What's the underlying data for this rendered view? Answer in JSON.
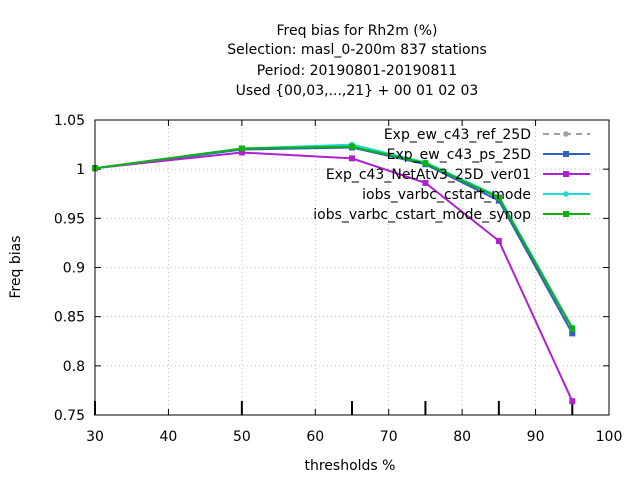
{
  "chart_data": {
    "type": "line",
    "title_lines": [
      "Freq bias  for Rh2m (%)",
      "Selection: masl_0-200m    837 stations",
      "Period: 20190801-20190811",
      "Used {00,03,...,21} + 00 01 02 03"
    ],
    "xlabel": "thresholds %",
    "ylabel": "Freq bias",
    "xlim": [
      30,
      100
    ],
    "ylim": [
      0.75,
      1.05
    ],
    "x_ticks": [
      30,
      40,
      50,
      60,
      70,
      80,
      90,
      100
    ],
    "y_ticks": [
      0.75,
      0.8,
      0.85,
      0.9,
      0.95,
      1,
      1.05
    ],
    "y_tick_labels": [
      "0.75",
      "0.8",
      "0.85",
      "0.9",
      "0.95",
      "1",
      "1.05"
    ],
    "x": [
      30,
      50,
      65,
      75,
      85,
      95
    ],
    "grid": true,
    "legend_position": "top-right",
    "series": [
      {
        "name": "Exp_ew_c43_ref_25D",
        "color": "#a0a0a0",
        "dashed": true,
        "marker": "circle",
        "values": [
          1.001,
          1.02,
          1.022,
          1.006,
          0.97,
          0.835
        ]
      },
      {
        "name": "Exp_ew_c43_ps_25D",
        "color": "#3060c0",
        "dashed": false,
        "marker": "square",
        "values": [
          1.001,
          1.02,
          1.022,
          1.005,
          0.968,
          0.833
        ]
      },
      {
        "name": "Exp_c43_NetAtv3_25D_ver01",
        "color": "#b020d0",
        "dashed": false,
        "marker": "square",
        "values": [
          1.001,
          1.017,
          1.011,
          0.986,
          0.927,
          0.764
        ]
      },
      {
        "name": "iobs_varbc_cstart_mode",
        "color": "#20d8d8",
        "dashed": false,
        "marker": "circle",
        "values": [
          1.001,
          1.021,
          1.025,
          1.007,
          0.972,
          0.839
        ]
      },
      {
        "name": "iobs_varbc_cstart_mode_synop",
        "color": "#10b010",
        "dashed": false,
        "marker": "square",
        "values": [
          1.001,
          1.021,
          1.023,
          1.006,
          0.971,
          0.838
        ]
      }
    ]
  }
}
